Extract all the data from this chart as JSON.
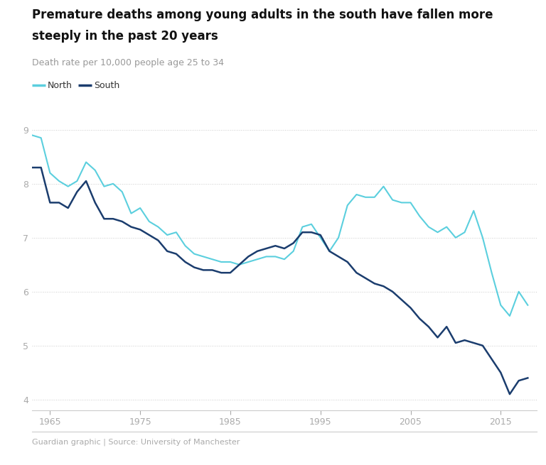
{
  "title_line1": "Premature deaths among young adults in the south have fallen more",
  "title_line2": "steeply in the past 20 years",
  "subtitle": "Death rate per 10,000 people age 25 to 34",
  "footer": "Guardian graphic | Source: University of Manchester",
  "north_color": "#5bcfde",
  "south_color": "#1b3d6e",
  "background_color": "#ffffff",
  "ylim": [
    3.8,
    9.3
  ],
  "yticks": [
    4,
    5,
    6,
    7,
    8,
    9
  ],
  "xlim": [
    1963,
    2019
  ],
  "xticks": [
    1965,
    1975,
    1985,
    1995,
    2005,
    2015
  ],
  "north_data": [
    [
      1963,
      8.9
    ],
    [
      1964,
      8.85
    ],
    [
      1965,
      8.2
    ],
    [
      1966,
      8.05
    ],
    [
      1967,
      7.95
    ],
    [
      1968,
      8.05
    ],
    [
      1969,
      8.4
    ],
    [
      1970,
      8.25
    ],
    [
      1971,
      7.95
    ],
    [
      1972,
      8.0
    ],
    [
      1973,
      7.85
    ],
    [
      1974,
      7.45
    ],
    [
      1975,
      7.55
    ],
    [
      1976,
      7.3
    ],
    [
      1977,
      7.2
    ],
    [
      1978,
      7.05
    ],
    [
      1979,
      7.1
    ],
    [
      1980,
      6.85
    ],
    [
      1981,
      6.7
    ],
    [
      1982,
      6.65
    ],
    [
      1983,
      6.6
    ],
    [
      1984,
      6.55
    ],
    [
      1985,
      6.55
    ],
    [
      1986,
      6.5
    ],
    [
      1987,
      6.55
    ],
    [
      1988,
      6.6
    ],
    [
      1989,
      6.65
    ],
    [
      1990,
      6.65
    ],
    [
      1991,
      6.6
    ],
    [
      1992,
      6.75
    ],
    [
      1993,
      7.2
    ],
    [
      1994,
      7.25
    ],
    [
      1995,
      7.0
    ],
    [
      1996,
      6.75
    ],
    [
      1997,
      7.0
    ],
    [
      1998,
      7.6
    ],
    [
      1999,
      7.8
    ],
    [
      2000,
      7.75
    ],
    [
      2001,
      7.75
    ],
    [
      2002,
      7.95
    ],
    [
      2003,
      7.7
    ],
    [
      2004,
      7.65
    ],
    [
      2005,
      7.65
    ],
    [
      2006,
      7.4
    ],
    [
      2007,
      7.2
    ],
    [
      2008,
      7.1
    ],
    [
      2009,
      7.2
    ],
    [
      2010,
      7.0
    ],
    [
      2011,
      7.1
    ],
    [
      2012,
      7.5
    ],
    [
      2013,
      7.0
    ],
    [
      2014,
      6.35
    ],
    [
      2015,
      5.75
    ],
    [
      2016,
      5.55
    ],
    [
      2017,
      6.0
    ],
    [
      2018,
      5.75
    ]
  ],
  "south_data": [
    [
      1963,
      8.3
    ],
    [
      1964,
      8.3
    ],
    [
      1965,
      7.65
    ],
    [
      1966,
      7.65
    ],
    [
      1967,
      7.55
    ],
    [
      1968,
      7.85
    ],
    [
      1969,
      8.05
    ],
    [
      1970,
      7.65
    ],
    [
      1971,
      7.35
    ],
    [
      1972,
      7.35
    ],
    [
      1973,
      7.3
    ],
    [
      1974,
      7.2
    ],
    [
      1975,
      7.15
    ],
    [
      1976,
      7.05
    ],
    [
      1977,
      6.95
    ],
    [
      1978,
      6.75
    ],
    [
      1979,
      6.7
    ],
    [
      1980,
      6.55
    ],
    [
      1981,
      6.45
    ],
    [
      1982,
      6.4
    ],
    [
      1983,
      6.4
    ],
    [
      1984,
      6.35
    ],
    [
      1985,
      6.35
    ],
    [
      1986,
      6.5
    ],
    [
      1987,
      6.65
    ],
    [
      1988,
      6.75
    ],
    [
      1989,
      6.8
    ],
    [
      1990,
      6.85
    ],
    [
      1991,
      6.8
    ],
    [
      1992,
      6.9
    ],
    [
      1993,
      7.1
    ],
    [
      1994,
      7.1
    ],
    [
      1995,
      7.05
    ],
    [
      1996,
      6.75
    ],
    [
      1997,
      6.65
    ],
    [
      1998,
      6.55
    ],
    [
      1999,
      6.35
    ],
    [
      2000,
      6.25
    ],
    [
      2001,
      6.15
    ],
    [
      2002,
      6.1
    ],
    [
      2003,
      6.0
    ],
    [
      2004,
      5.85
    ],
    [
      2005,
      5.7
    ],
    [
      2006,
      5.5
    ],
    [
      2007,
      5.35
    ],
    [
      2008,
      5.15
    ],
    [
      2009,
      5.35
    ],
    [
      2010,
      5.05
    ],
    [
      2011,
      5.1
    ],
    [
      2012,
      5.05
    ],
    [
      2013,
      5.0
    ],
    [
      2014,
      4.75
    ],
    [
      2015,
      4.5
    ],
    [
      2016,
      4.1
    ],
    [
      2017,
      4.35
    ],
    [
      2018,
      4.4
    ]
  ]
}
